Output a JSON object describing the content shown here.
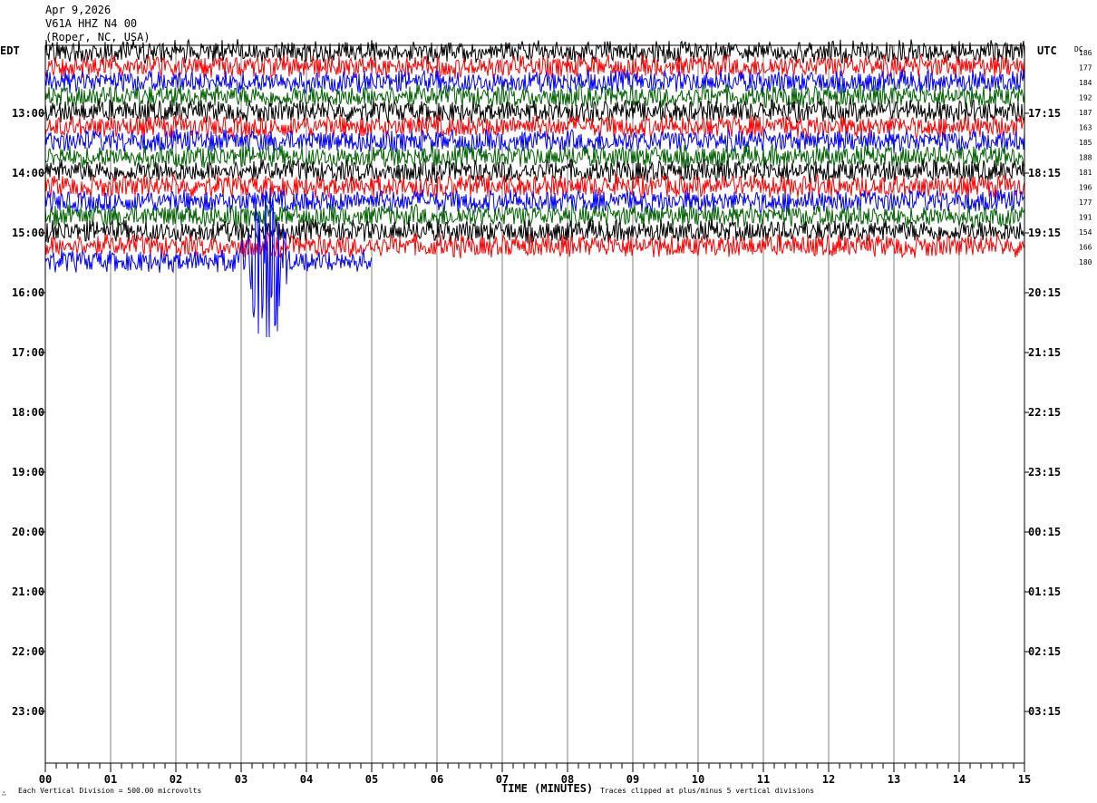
{
  "header": {
    "date": "Apr 9,2026",
    "station": "V61A HHZ N4 00",
    "location": "(Roper, NC, USA)"
  },
  "left_zone": "EDT",
  "right_zone": "UTC",
  "dc_label": "DC",
  "footer": {
    "scale_note": "Each Vertical Division =  500.00 microvolts",
    "clip_note": "Traces clipped at plus/minus 5 vertical divisions",
    "corner_mark": "∴"
  },
  "colors": {
    "palette": [
      "#000000",
      "#ff0000",
      "#0000ff",
      "#006400"
    ],
    "grid": "#808080"
  },
  "chart_data": {
    "type": "line",
    "xlabel": "TIME (MINUTES)",
    "x_ticks": [
      "00",
      "01",
      "02",
      "03",
      "04",
      "05",
      "06",
      "07",
      "08",
      "09",
      "10",
      "11",
      "12",
      "13",
      "14",
      "15"
    ],
    "xlim": [
      0,
      15
    ],
    "left_hour_labels": [
      "13:00",
      "14:00",
      "15:00",
      "16:00",
      "17:00",
      "18:00",
      "19:00",
      "20:00",
      "21:00",
      "22:00",
      "23:00"
    ],
    "right_hour_labels": [
      "17:15",
      "18:15",
      "19:15",
      "20:15",
      "21:15",
      "22:15",
      "23:15",
      "00:15",
      "01:15",
      "02:15",
      "03:15"
    ],
    "dc_offsets": [
      "186",
      "177",
      "184",
      "192",
      "187",
      "163",
      "185",
      "188",
      "181",
      "196",
      "177",
      "191",
      "154",
      "166",
      "180"
    ],
    "trace_count": 15,
    "traces_per_hour": 4,
    "last_trace_end_minute": 5.0,
    "event": {
      "trace_index": 14,
      "start_minute": 2.85,
      "end_minute": 3.7,
      "peak_minute": 3.4,
      "clipped": true
    }
  }
}
